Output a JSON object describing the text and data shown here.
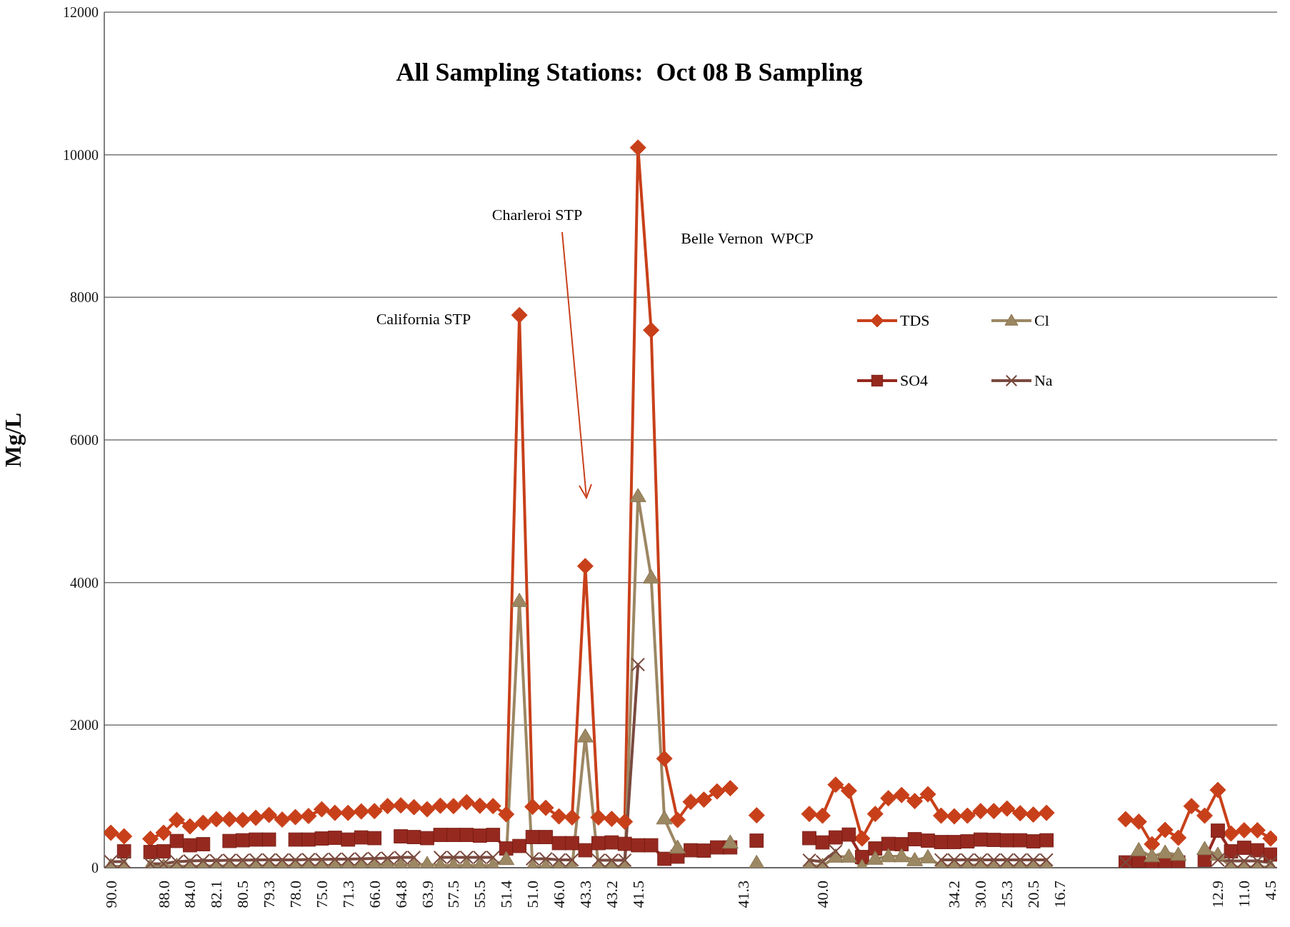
{
  "chart_data": {
    "type": "line",
    "title": "All Sampling Stations:  Oct 08 B Sampling",
    "ylabel": "Mg/L",
    "categories": [
      "90.0",
      null,
      null,
      null,
      "88.0",
      null,
      "84.0",
      null,
      "82.1",
      null,
      "80.5",
      null,
      "79.3",
      null,
      "78.0",
      null,
      "75.0",
      null,
      "71.3",
      null,
      "66.0",
      null,
      "64.8",
      null,
      "63.9",
      null,
      "57.5",
      null,
      "55.5",
      null,
      "51.4",
      null,
      "51.0",
      null,
      "46.0",
      null,
      "43.3",
      null,
      "43.2",
      null,
      "41.5",
      null,
      null,
      null,
      null,
      null,
      null,
      null,
      "41.3",
      null,
      null,
      null,
      null,
      null,
      "40.0",
      null,
      null,
      null,
      null,
      null,
      null,
      null,
      null,
      null,
      "34.2",
      null,
      "30.0",
      null,
      "25.3",
      null,
      "20.5",
      null,
      "16.7",
      null,
      null,
      null,
      null,
      null,
      null,
      null,
      null,
      null,
      null,
      null,
      "12.9",
      null,
      "11.0",
      null,
      "4.5"
    ],
    "series": [
      {
        "name": "TDS",
        "color": "#c8401a",
        "marker": "diamond",
        "values": [
          490,
          440,
          null,
          405,
          490,
          670,
          580,
          630,
          680,
          680,
          670,
          700,
          740,
          675,
          710,
          725,
          820,
          770,
          770,
          790,
          795,
          865,
          875,
          850,
          820,
          870,
          865,
          920,
          870,
          865,
          750,
          7750,
          855,
          840,
          720,
          705,
          4230,
          705,
          685,
          645,
          10100,
          7540,
          1530,
          670,
          925,
          955,
          1070,
          1115,
          null,
          735,
          null,
          null,
          null,
          755,
          730,
          1165,
          1080,
          410,
          755,
          975,
          1020,
          935,
          1030,
          730,
          720,
          730,
          795,
          795,
          830,
          765,
          745,
          770,
          null,
          null,
          null,
          null,
          null,
          680,
          645,
          330,
          530,
          420,
          865,
          730,
          1090,
          480,
          525,
          525,
          410
        ]
      },
      {
        "name": "SO4",
        "color": "#96291f",
        "marker": "square",
        "values": [
          null,
          230,
          null,
          220,
          230,
          375,
          315,
          330,
          null,
          375,
          385,
          395,
          395,
          null,
          395,
          395,
          410,
          420,
          395,
          425,
          415,
          null,
          440,
          430,
          415,
          460,
          460,
          460,
          450,
          460,
          270,
          305,
          430,
          430,
          345,
          345,
          245,
          345,
          355,
          335,
          315,
          315,
          125,
          155,
          245,
          240,
          285,
          285,
          null,
          380,
          null,
          null,
          null,
          415,
          355,
          425,
          465,
          150,
          270,
          335,
          330,
          400,
          380,
          360,
          360,
          370,
          395,
          390,
          385,
          385,
          370,
          385,
          null,
          null,
          null,
          null,
          null,
          75,
          95,
          45,
          75,
          75,
          null,
          110,
          520,
          230,
          280,
          245,
          185
        ]
      },
      {
        "name": "Cl",
        "color": "#9c8763",
        "marker": "triangle",
        "values": [
          20,
          20,
          null,
          20,
          20,
          25,
          20,
          25,
          25,
          25,
          25,
          25,
          25,
          25,
          25,
          25,
          30,
          30,
          30,
          30,
          30,
          35,
          40,
          40,
          50,
          30,
          30,
          30,
          30,
          30,
          120,
          3740,
          15,
          15,
          15,
          15,
          1840,
          15,
          15,
          15,
          5210,
          4070,
          690,
          280,
          null,
          null,
          null,
          350,
          null,
          65,
          null,
          null,
          null,
          25,
          25,
          155,
          155,
          10,
          125,
          160,
          160,
          105,
          145,
          25,
          25,
          25,
          45,
          10,
          25,
          25,
          25,
          25,
          null,
          null,
          null,
          null,
          null,
          null,
          245,
          160,
          210,
          180,
          null,
          260,
          180,
          10,
          10,
          10,
          10
        ]
      },
      {
        "name": "Na",
        "color": "#7a4a3f",
        "marker": "cross",
        "values": [
          85,
          85,
          null,
          55,
          55,
          85,
          95,
          100,
          100,
          105,
          105,
          110,
          110,
          110,
          110,
          115,
          115,
          120,
          120,
          125,
          130,
          135,
          145,
          145,
          null,
          145,
          145,
          145,
          145,
          145,
          null,
          null,
          125,
          125,
          110,
          110,
          null,
          105,
          105,
          105,
          2850,
          null,
          null,
          null,
          null,
          null,
          null,
          null,
          null,
          null,
          null,
          null,
          null,
          105,
          85,
          230,
          null,
          null,
          null,
          null,
          null,
          null,
          null,
          110,
          110,
          110,
          110,
          110,
          110,
          110,
          110,
          110,
          null,
          null,
          null,
          null,
          null,
          75,
          null,
          null,
          null,
          null,
          null,
          null,
          110,
          95,
          95,
          95,
          70
        ]
      }
    ],
    "ylim": [
      0,
      12000
    ],
    "yticks": [
      0,
      2000,
      4000,
      6000,
      8000,
      10000,
      12000
    ],
    "grid": "y",
    "legend": "top right",
    "annotations": [
      "California STP",
      "Charleroi STP",
      "Belle Vernon  WPCP"
    ]
  }
}
